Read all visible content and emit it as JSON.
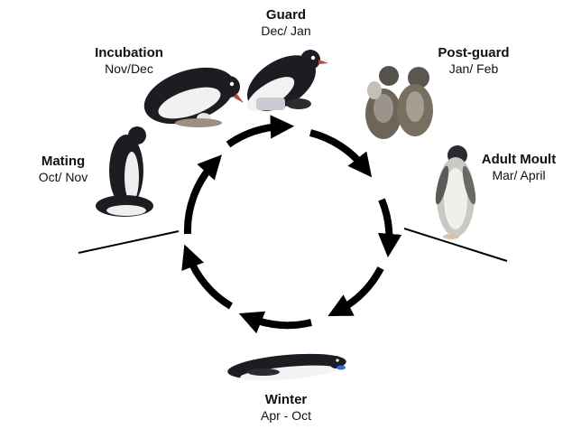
{
  "stages": [
    {
      "id": "guard",
      "title": "Guard",
      "months": "Dec/ Jan"
    },
    {
      "id": "post-guard",
      "title": "Post-guard",
      "months": "Jan/ Feb"
    },
    {
      "id": "incubation",
      "title": "Incubation",
      "months": "Nov/Dec"
    },
    {
      "id": "mating",
      "title": "Mating",
      "months": "Oct/ Nov"
    },
    {
      "id": "adult-moult",
      "title": "Adult Moult",
      "months": "Mar/ April"
    },
    {
      "id": "winter",
      "title": "Winter",
      "months": "Apr - Oct"
    }
  ],
  "cycle_direction": "clockwise",
  "colors": {
    "arrows": "#000000",
    "text": "#111111"
  }
}
